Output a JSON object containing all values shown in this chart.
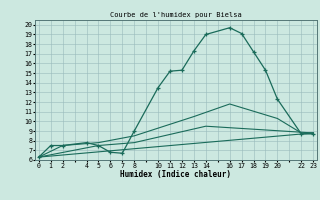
{
  "title": "Courbe de l'humidex pour Bielsa",
  "xlabel": "Humidex (Indice chaleur)",
  "bg_color": "#cce8e0",
  "grid_color": "#99bbbb",
  "line_color": "#1a6b5a",
  "xlim": [
    -0.3,
    23.3
  ],
  "ylim": [
    6,
    20.5
  ],
  "xtick_positions": [
    0,
    1,
    2,
    3,
    4,
    5,
    6,
    7,
    8,
    9,
    10,
    11,
    12,
    13,
    14,
    15,
    16,
    17,
    18,
    19,
    20,
    21,
    22,
    23
  ],
  "xtick_labels": [
    "0",
    "1",
    "2",
    "",
    "4",
    "5",
    "6",
    "7",
    "8",
    "",
    "10",
    "11",
    "12",
    "13",
    "14",
    "",
    "16",
    "17",
    "18",
    "19",
    "20",
    "",
    "22",
    "23"
  ],
  "yticks": [
    6,
    7,
    8,
    9,
    10,
    11,
    12,
    13,
    14,
    15,
    16,
    17,
    18,
    19,
    20
  ],
  "series": [
    {
      "x": [
        0,
        1,
        2,
        4,
        5,
        6,
        7,
        8,
        10,
        11,
        12,
        13,
        14,
        16,
        17,
        18,
        19,
        20,
        22,
        23
      ],
      "y": [
        6.3,
        7.5,
        7.5,
        7.8,
        7.5,
        6.8,
        6.7,
        9.0,
        13.5,
        15.2,
        15.3,
        17.3,
        19.0,
        19.7,
        19.1,
        17.2,
        15.3,
        12.3,
        8.7,
        8.7
      ],
      "with_marker": true
    },
    {
      "x": [
        0,
        2,
        5,
        8,
        13,
        16,
        20,
        22,
        23
      ],
      "y": [
        6.3,
        7.5,
        7.8,
        8.5,
        10.5,
        11.8,
        10.3,
        8.8,
        8.8
      ],
      "with_marker": false
    },
    {
      "x": [
        0,
        5,
        8,
        14,
        23
      ],
      "y": [
        6.3,
        7.5,
        7.8,
        9.5,
        8.8
      ],
      "with_marker": false
    },
    {
      "x": [
        0,
        23
      ],
      "y": [
        6.3,
        8.8
      ],
      "with_marker": false
    }
  ]
}
